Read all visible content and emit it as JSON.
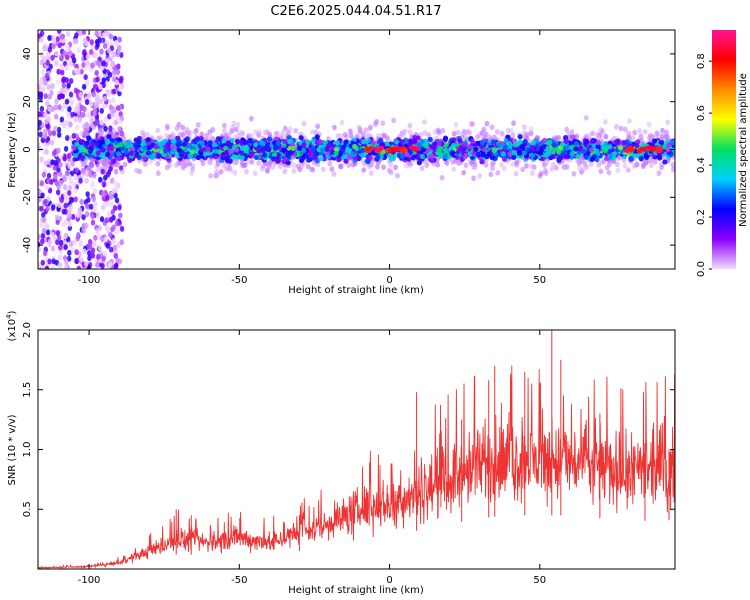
{
  "title": "C2E6.2025.044.04.51.R17",
  "chart_data": [
    {
      "type": "heatmap",
      "xlabel": "Height of straight line (km)",
      "ylabel": "Frequency (Hz)",
      "xlim": [
        -117,
        95
      ],
      "ylim": [
        -50,
        50
      ],
      "xticks": [
        -100,
        -50,
        0,
        50
      ],
      "yticks": [
        -40,
        -20,
        0,
        20,
        40
      ],
      "colorbar": {
        "label": "Normalized spectral amplitude",
        "range": [
          0,
          0.92
        ],
        "ticks": [
          0.0,
          0.2,
          0.4,
          0.6,
          0.8
        ],
        "colors": [
          "#f2d9ff",
          "#8a00ff",
          "#0000ff",
          "#00cfff",
          "#00e060",
          "#ffff00",
          "#ff8c00",
          "#ff0000",
          "#ff1493"
        ]
      },
      "band": {
        "center_hz": 0,
        "half_width_hz": 6,
        "noisy_region_end_km": -93
      },
      "hot_spots_km": [
        -7,
        -3,
        0,
        2,
        5,
        8,
        80,
        84,
        87,
        90
      ]
    },
    {
      "type": "line",
      "xlabel": "Height of straight line (km)",
      "ylabel": "SNR (10 * v/v)",
      "y_multiplier": "(x10^4)",
      "y_multiplier_base": "(x10",
      "y_multiplier_exp": "4",
      "y_multiplier_close": ")",
      "xlim": [
        -117,
        95
      ],
      "ylim": [
        0,
        2.0
      ],
      "xticks": [
        -100,
        -50,
        0,
        50
      ],
      "yticks": [
        0.5,
        1.0,
        1.5,
        2.0
      ],
      "color": "#ee3333",
      "envelope": [
        {
          "x": -117,
          "y": 0.01
        },
        {
          "x": -100,
          "y": 0.02
        },
        {
          "x": -90,
          "y": 0.05
        },
        {
          "x": -80,
          "y": 0.15
        },
        {
          "x": -70,
          "y": 0.25
        },
        {
          "x": -60,
          "y": 0.22
        },
        {
          "x": -50,
          "y": 0.26
        },
        {
          "x": -40,
          "y": 0.22
        },
        {
          "x": -30,
          "y": 0.3
        },
        {
          "x": -20,
          "y": 0.38
        },
        {
          "x": -10,
          "y": 0.5
        },
        {
          "x": 0,
          "y": 0.55
        },
        {
          "x": 10,
          "y": 0.65
        },
        {
          "x": 20,
          "y": 0.75
        },
        {
          "x": 30,
          "y": 0.85
        },
        {
          "x": 40,
          "y": 0.9
        },
        {
          "x": 50,
          "y": 0.9
        },
        {
          "x": 60,
          "y": 0.9
        },
        {
          "x": 70,
          "y": 0.85
        },
        {
          "x": 80,
          "y": 0.8
        },
        {
          "x": 95,
          "y": 0.82
        }
      ],
      "spikes": [
        {
          "x": -71,
          "y": 0.5
        },
        {
          "x": -66,
          "y": 0.45
        },
        {
          "x": -30,
          "y": 0.45
        },
        {
          "x": -12,
          "y": 0.65
        },
        {
          "x": 9,
          "y": 1.48
        },
        {
          "x": 24,
          "y": 1.25
        },
        {
          "x": 33,
          "y": 1.58
        },
        {
          "x": 35,
          "y": 1.7
        },
        {
          "x": 45,
          "y": 1.65
        },
        {
          "x": 54,
          "y": 2.0
        },
        {
          "x": 57,
          "y": 1.75
        },
        {
          "x": 70,
          "y": 1.3
        },
        {
          "x": 85,
          "y": 1.05
        },
        {
          "x": 93,
          "y": 1.0
        }
      ]
    }
  ]
}
